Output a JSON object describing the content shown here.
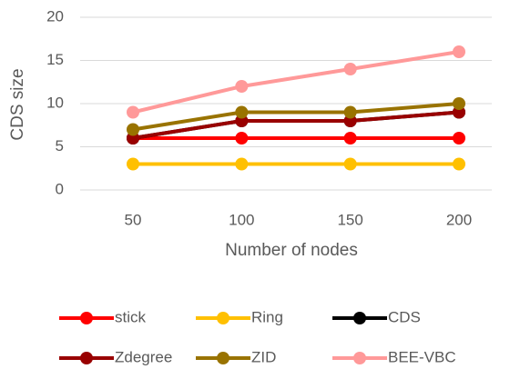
{
  "chart_data": {
    "type": "line",
    "categories": [
      50,
      100,
      150,
      200
    ],
    "x_label": "Number of nodes",
    "y_label": "CDS size",
    "ylim": [
      0,
      20
    ],
    "yticks": [
      0,
      5,
      10,
      15,
      20
    ],
    "grid": true,
    "series": [
      {
        "name": "stick",
        "color": "#ff0000",
        "values": [
          6,
          6,
          6,
          6
        ]
      },
      {
        "name": "Ring",
        "color": "#ffc000",
        "values": [
          3,
          3,
          3,
          3
        ]
      },
      {
        "name": "CDS",
        "color": "#000000",
        "values": [
          6,
          8,
          8,
          9
        ]
      },
      {
        "name": "Zdegree",
        "color": "#990000",
        "values": [
          6,
          8,
          8,
          9
        ]
      },
      {
        "name": "ZID",
        "color": "#997300",
        "values": [
          7,
          9,
          9,
          10
        ]
      },
      {
        "name": "BEE-VBC",
        "color": "#ff9999",
        "values": [
          9,
          12,
          14,
          16
        ]
      }
    ]
  }
}
